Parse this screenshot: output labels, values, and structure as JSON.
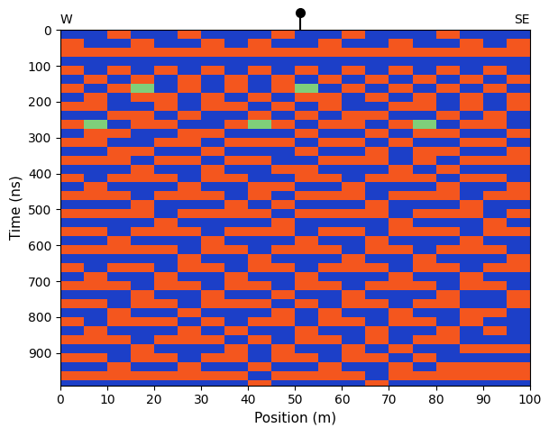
{
  "chart_data": {
    "type": "heatmap",
    "xlabel": "Position (m)",
    "ylabel": "Time (ns)",
    "direction_labels": {
      "left": "W",
      "right": "SE"
    },
    "position_marker": 51,
    "xlim": [
      0,
      100
    ],
    "xticks": [
      0,
      10,
      20,
      30,
      40,
      50,
      60,
      70,
      80,
      90,
      100
    ],
    "ylim": [
      990,
      0
    ],
    "yticks": [
      0,
      100,
      200,
      300,
      400,
      500,
      600,
      700,
      800,
      900
    ],
    "colors": [
      "#1c3fc8",
      "#7fcf7a",
      "#f4561e"
    ],
    "zlim": [
      -1,
      1
    ],
    "x_edges": [
      0,
      5,
      10,
      15,
      20,
      25,
      30,
      35,
      40,
      45,
      50,
      55,
      60,
      65,
      70,
      75,
      80,
      85,
      90,
      95,
      100
    ],
    "y_edges": [
      0,
      25,
      50,
      75,
      100,
      125,
      150,
      175,
      200,
      225,
      250,
      275,
      300,
      325,
      350,
      375,
      400,
      425,
      450,
      475,
      500,
      525,
      550,
      575,
      600,
      625,
      650,
      675,
      700,
      725,
      750,
      775,
      800,
      825,
      850,
      875,
      900,
      925,
      950,
      975,
      1000
    ],
    "cells": [
      [
        -1,
        -1,
        1,
        -1,
        -1,
        1,
        -1,
        -1,
        -1,
        1,
        -1,
        -1,
        1,
        -1,
        -1,
        -1,
        1,
        -1,
        -1,
        -1
      ],
      [
        1,
        -1,
        -1,
        1,
        -1,
        -1,
        1,
        -1,
        1,
        -1,
        -1,
        1,
        -1,
        -1,
        1,
        -1,
        -1,
        1,
        -1,
        1
      ],
      [
        1,
        1,
        1,
        1,
        1,
        1,
        1,
        1,
        1,
        1,
        1,
        1,
        1,
        1,
        1,
        1,
        1,
        1,
        1,
        1
      ],
      [
        -1,
        -1,
        -1,
        -1,
        -1,
        -1,
        -1,
        -1,
        -1,
        -1,
        -1,
        -1,
        -1,
        -1,
        -1,
        -1,
        -1,
        -1,
        -1,
        -1
      ],
      [
        1,
        -1,
        1,
        -1,
        1,
        -1,
        1,
        -1,
        1,
        -1,
        1,
        -1,
        1,
        -1,
        1,
        -1,
        1,
        -1,
        1,
        -1
      ],
      [
        -1,
        1,
        -1,
        1,
        -1,
        1,
        -1,
        1,
        -1,
        1,
        -1,
        1,
        -1,
        1,
        -1,
        1,
        -1,
        1,
        -1,
        1
      ],
      [
        1,
        -1,
        1,
        0,
        -1,
        1,
        -1,
        1,
        -1,
        1,
        0,
        -1,
        1,
        -1,
        1,
        -1,
        1,
        -1,
        1,
        -1
      ],
      [
        -1,
        1,
        -1,
        1,
        1,
        -1,
        1,
        -1,
        1,
        -1,
        1,
        1,
        -1,
        1,
        -1,
        1,
        -1,
        1,
        -1,
        1
      ],
      [
        1,
        1,
        -1,
        -1,
        1,
        -1,
        1,
        1,
        -1,
        1,
        -1,
        1,
        -1,
        -1,
        1,
        1,
        -1,
        1,
        -1,
        1
      ],
      [
        -1,
        -1,
        1,
        1,
        -1,
        1,
        -1,
        -1,
        1,
        -1,
        1,
        -1,
        1,
        1,
        -1,
        -1,
        1,
        -1,
        1,
        -1
      ],
      [
        1,
        0,
        -1,
        1,
        1,
        -1,
        -1,
        1,
        0,
        1,
        -1,
        1,
        1,
        -1,
        1,
        0,
        -1,
        1,
        1,
        -1
      ],
      [
        -1,
        1,
        1,
        -1,
        -1,
        1,
        1,
        -1,
        -1,
        -1,
        1,
        -1,
        -1,
        1,
        -1,
        1,
        1,
        -1,
        -1,
        1
      ],
      [
        1,
        1,
        -1,
        -1,
        1,
        1,
        -1,
        1,
        1,
        1,
        -1,
        1,
        1,
        -1,
        1,
        -1,
        -1,
        1,
        1,
        -1
      ],
      [
        -1,
        -1,
        1,
        1,
        -1,
        -1,
        1,
        -1,
        -1,
        -1,
        1,
        -1,
        -1,
        1,
        -1,
        1,
        1,
        -1,
        -1,
        1
      ],
      [
        1,
        1,
        1,
        -1,
        1,
        1,
        -1,
        1,
        1,
        -1,
        -1,
        1,
        1,
        1,
        -1,
        1,
        -1,
        1,
        1,
        1
      ],
      [
        -1,
        -1,
        -1,
        1,
        -1,
        -1,
        1,
        -1,
        -1,
        1,
        1,
        -1,
        -1,
        -1,
        1,
        -1,
        1,
        -1,
        -1,
        -1
      ],
      [
        1,
        -1,
        1,
        1,
        1,
        -1,
        1,
        1,
        -1,
        -1,
        1,
        1,
        -1,
        1,
        1,
        1,
        -1,
        1,
        1,
        -1
      ],
      [
        -1,
        1,
        -1,
        -1,
        -1,
        1,
        -1,
        -1,
        1,
        1,
        -1,
        -1,
        1,
        -1,
        -1,
        -1,
        1,
        -1,
        -1,
        1
      ],
      [
        1,
        1,
        1,
        -1,
        1,
        1,
        1,
        -1,
        1,
        -1,
        1,
        1,
        1,
        -1,
        1,
        1,
        1,
        -1,
        1,
        1
      ],
      [
        -1,
        -1,
        -1,
        1,
        -1,
        -1,
        -1,
        1,
        -1,
        1,
        -1,
        -1,
        -1,
        1,
        -1,
        -1,
        -1,
        1,
        -1,
        -1
      ],
      [
        1,
        1,
        1,
        1,
        -1,
        1,
        1,
        1,
        1,
        -1,
        1,
        1,
        1,
        1,
        -1,
        1,
        1,
        1,
        -1,
        1
      ],
      [
        -1,
        -1,
        -1,
        -1,
        1,
        -1,
        -1,
        -1,
        -1,
        1,
        -1,
        -1,
        -1,
        -1,
        1,
        -1,
        -1,
        -1,
        1,
        -1
      ],
      [
        1,
        1,
        -1,
        1,
        1,
        1,
        -1,
        1,
        1,
        1,
        -1,
        1,
        1,
        -1,
        1,
        1,
        1,
        -1,
        1,
        1
      ],
      [
        -1,
        -1,
        1,
        -1,
        -1,
        -1,
        1,
        -1,
        -1,
        -1,
        1,
        -1,
        -1,
        1,
        -1,
        -1,
        -1,
        1,
        -1,
        -1
      ],
      [
        1,
        1,
        1,
        1,
        1,
        -1,
        1,
        1,
        -1,
        1,
        1,
        1,
        -1,
        1,
        1,
        -1,
        1,
        1,
        1,
        -1
      ],
      [
        -1,
        -1,
        -1,
        -1,
        -1,
        1,
        -1,
        -1,
        1,
        -1,
        -1,
        -1,
        1,
        -1,
        -1,
        1,
        -1,
        -1,
        -1,
        1
      ],
      [
        1,
        -1,
        1,
        1,
        -1,
        1,
        1,
        -1,
        1,
        1,
        -1,
        1,
        1,
        1,
        -1,
        1,
        1,
        -1,
        1,
        1
      ],
      [
        -1,
        1,
        -1,
        -1,
        1,
        -1,
        -1,
        1,
        -1,
        -1,
        1,
        -1,
        -1,
        -1,
        1,
        -1,
        -1,
        1,
        -1,
        -1
      ],
      [
        1,
        1,
        1,
        -1,
        1,
        1,
        -1,
        1,
        1,
        -1,
        1,
        1,
        -1,
        1,
        1,
        1,
        -1,
        1,
        1,
        -1
      ],
      [
        -1,
        -1,
        -1,
        1,
        -1,
        -1,
        1,
        -1,
        -1,
        1,
        -1,
        -1,
        1,
        -1,
        -1,
        -1,
        1,
        -1,
        -1,
        1
      ],
      [
        1,
        1,
        -1,
        1,
        1,
        -1,
        1,
        1,
        1,
        -1,
        1,
        -1,
        1,
        1,
        -1,
        1,
        1,
        -1,
        -1,
        1
      ],
      [
        -1,
        -1,
        1,
        -1,
        -1,
        1,
        -1,
        -1,
        -1,
        1,
        -1,
        1,
        -1,
        -1,
        1,
        -1,
        -1,
        1,
        1,
        -1
      ],
      [
        1,
        -1,
        1,
        1,
        1,
        -1,
        1,
        -1,
        1,
        1,
        -1,
        1,
        1,
        -1,
        1,
        1,
        -1,
        1,
        -1,
        -1
      ],
      [
        -1,
        1,
        -1,
        -1,
        -1,
        1,
        -1,
        1,
        -1,
        -1,
        1,
        -1,
        -1,
        1,
        -1,
        -1,
        1,
        -1,
        1,
        -1
      ],
      [
        1,
        1,
        1,
        -1,
        1,
        1,
        1,
        -1,
        1,
        -1,
        1,
        1,
        -1,
        1,
        -1,
        1,
        1,
        -1,
        -1,
        -1
      ],
      [
        -1,
        -1,
        -1,
        1,
        -1,
        -1,
        -1,
        1,
        -1,
        1,
        -1,
        -1,
        1,
        -1,
        1,
        -1,
        -1,
        1,
        1,
        1
      ],
      [
        1,
        1,
        -1,
        1,
        1,
        -1,
        1,
        1,
        -1,
        1,
        1,
        -1,
        1,
        1,
        -1,
        1,
        -1,
        -1,
        -1,
        -1
      ],
      [
        -1,
        -1,
        1,
        -1,
        -1,
        1,
        -1,
        -1,
        1,
        -1,
        -1,
        1,
        -1,
        -1,
        1,
        -1,
        1,
        1,
        1,
        1
      ],
      [
        1,
        1,
        1,
        1,
        1,
        1,
        1,
        1,
        -1,
        1,
        1,
        1,
        1,
        -1,
        1,
        1,
        1,
        1,
        1,
        1
      ],
      [
        -1,
        -1,
        -1,
        -1,
        -1,
        -1,
        -1,
        -1,
        1,
        -1,
        -1,
        -1,
        -1,
        1,
        -1,
        -1,
        -1,
        -1,
        -1,
        -1
      ]
    ]
  }
}
